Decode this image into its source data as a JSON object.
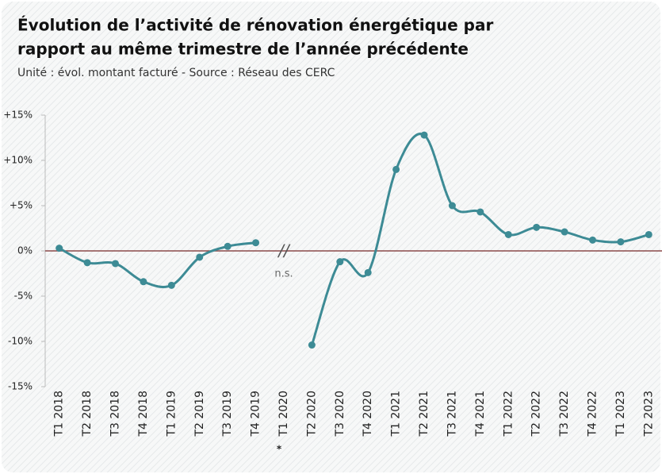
{
  "chart_data": {
    "type": "line",
    "title": [
      "Évolution de l’activité de rénovation énergétique par",
      "rapport au même trimestre de l’année précédente"
    ],
    "subtitle": "Unité : évol. montant facturé - Source : Réseau des CERC",
    "categories": [
      "T1 2018",
      "T2 2018",
      "T3 2018",
      "T4 2018",
      "T1 2019",
      "T2 2019",
      "T3 2019",
      "T4 2019",
      "T1 2020",
      "T2 2020",
      "T3 2020",
      "T4 2020",
      "T1 2021",
      "T2 2021",
      "T3 2021",
      "T4 2021",
      "T1 2022",
      "T2 2022",
      "T3 2022",
      "T4 2022",
      "T1 2023",
      "T2 2023"
    ],
    "series": [
      {
        "name": "Évolution",
        "color": "#3d8b95",
        "values": [
          0.3,
          -1.3,
          -1.4,
          -3.4,
          -3.8,
          -0.7,
          0.5,
          0.9,
          null,
          -10.4,
          -1.2,
          -2.4,
          9.0,
          12.8,
          5.0,
          4.3,
          1.8,
          2.6,
          2.1,
          1.2,
          1.0,
          1.8
        ]
      }
    ],
    "ylim": [
      -15,
      15
    ],
    "yticks": [
      {
        "value": -15,
        "label": "-15%"
      },
      {
        "value": -10,
        "label": "-10%"
      },
      {
        "value": -5,
        "label": "-5%"
      },
      {
        "value": 0,
        "label": "0%"
      },
      {
        "value": 5,
        "label": "+5%"
      },
      {
        "value": 10,
        "label": "+10%"
      },
      {
        "value": 15,
        "label": "+15%"
      }
    ],
    "zero_line_color": "#8b4a4a",
    "annotations": {
      "gap_mark": "//",
      "gap_note": "n.s.",
      "footnote_mark": "*"
    }
  }
}
